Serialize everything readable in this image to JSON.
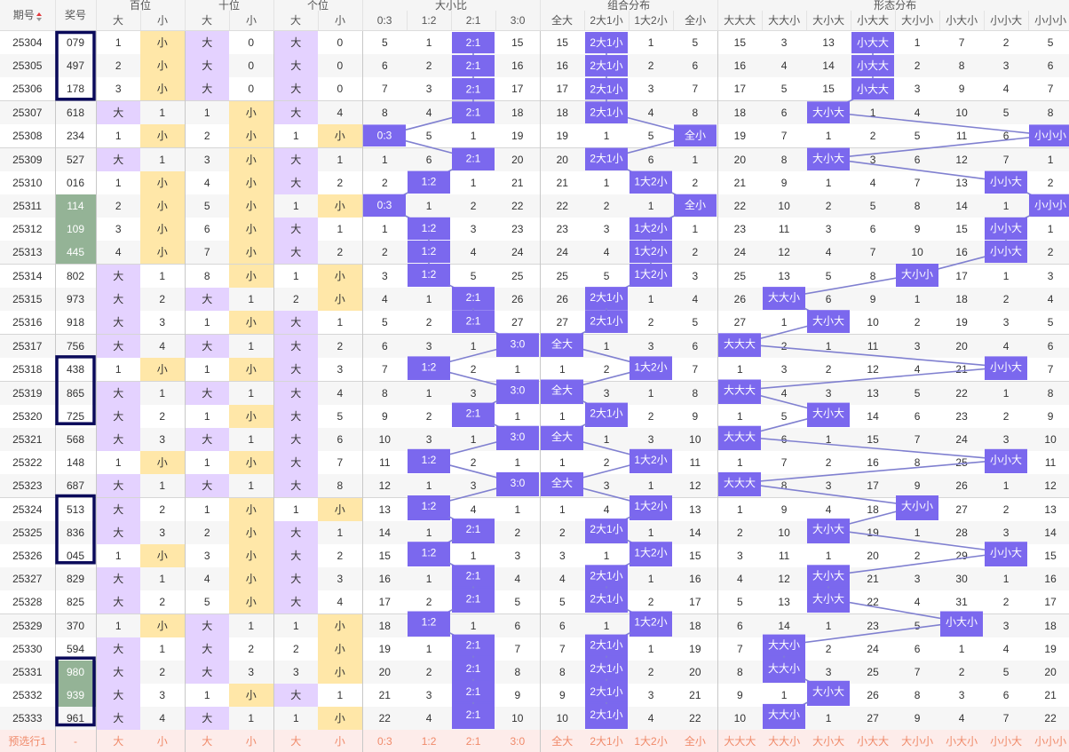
{
  "header": {
    "issue": "期号",
    "prize": "奖号",
    "groups": [
      "百位",
      "十位",
      "个位",
      "大小比",
      "组合分布",
      "形态分布"
    ],
    "big": "大",
    "small": "小",
    "ratio_cols": [
      "0:3",
      "1:2",
      "2:1",
      "3:0"
    ],
    "combo_cols": [
      "全大",
      "2大1小",
      "1大2小",
      "全小"
    ],
    "shape_cols": [
      "大大大",
      "大大小",
      "大小大",
      "小大大",
      "大小小",
      "小大小",
      "小小大",
      "小小小"
    ]
  },
  "preselect": {
    "label": "预选行1",
    "prize": "-"
  },
  "draws": [
    {
      "issue": "25304",
      "num": "079",
      "h": [
        "S",
        1
      ],
      "t": [
        "B",
        0
      ],
      "u": [
        "B",
        0
      ],
      "r": [
        5,
        1,
        0,
        15
      ],
      "c": [
        15,
        0,
        1,
        5
      ],
      "s": [
        15,
        3,
        13,
        0,
        1,
        7,
        2,
        5
      ]
    },
    {
      "issue": "25305",
      "num": "497",
      "h": [
        "S",
        2
      ],
      "t": [
        "B",
        0
      ],
      "u": [
        "B",
        0
      ],
      "r": [
        6,
        2,
        0,
        16
      ],
      "c": [
        16,
        0,
        2,
        6
      ],
      "s": [
        16,
        4,
        14,
        0,
        2,
        8,
        3,
        6
      ]
    },
    {
      "issue": "25306",
      "num": "178",
      "h": [
        "S",
        3
      ],
      "t": [
        "B",
        0
      ],
      "u": [
        "B",
        0
      ],
      "r": [
        7,
        3,
        0,
        17
      ],
      "c": [
        17,
        0,
        3,
        7
      ],
      "s": [
        17,
        5,
        15,
        0,
        3,
        9,
        4,
        7
      ]
    },
    {
      "issue": "25307",
      "num": "618",
      "h": [
        "B",
        1
      ],
      "t": [
        "S",
        1
      ],
      "u": [
        "B",
        4
      ],
      "r": [
        8,
        4,
        0,
        18
      ],
      "c": [
        18,
        0,
        4,
        8
      ],
      "s": [
        18,
        6,
        0,
        1,
        4,
        10,
        5,
        8
      ]
    },
    {
      "issue": "25308",
      "num": "234",
      "h": [
        "S",
        1
      ],
      "t": [
        "S",
        2
      ],
      "u": [
        "S",
        1
      ],
      "r": [
        0,
        5,
        1,
        19
      ],
      "c": [
        19,
        1,
        5,
        0
      ],
      "s": [
        19,
        7,
        1,
        2,
        5,
        11,
        6,
        0
      ]
    },
    {
      "issue": "25309",
      "num": "527",
      "h": [
        "B",
        1
      ],
      "t": [
        "S",
        3
      ],
      "u": [
        "B",
        1
      ],
      "r": [
        1,
        6,
        0,
        20
      ],
      "c": [
        20,
        0,
        6,
        1
      ],
      "s": [
        20,
        8,
        0,
        3,
        6,
        12,
        7,
        1
      ]
    },
    {
      "issue": "25310",
      "num": "016",
      "h": [
        "S",
        1
      ],
      "t": [
        "S",
        4
      ],
      "u": [
        "B",
        2
      ],
      "r": [
        2,
        0,
        1,
        21
      ],
      "c": [
        21,
        1,
        0,
        2
      ],
      "s": [
        21,
        9,
        1,
        4,
        7,
        13,
        0,
        2
      ]
    },
    {
      "issue": "25311",
      "num": "114",
      "h": [
        "S",
        2
      ],
      "t": [
        "S",
        5
      ],
      "u": [
        "S",
        1
      ],
      "r": [
        0,
        1,
        2,
        22
      ],
      "c": [
        22,
        2,
        1,
        0
      ],
      "s": [
        22,
        10,
        2,
        5,
        8,
        14,
        1,
        0
      ]
    },
    {
      "issue": "25312",
      "num": "109",
      "h": [
        "S",
        3
      ],
      "t": [
        "S",
        6
      ],
      "u": [
        "B",
        1
      ],
      "r": [
        1,
        0,
        3,
        23
      ],
      "c": [
        23,
        3,
        0,
        1
      ],
      "s": [
        23,
        11,
        3,
        6,
        9,
        15,
        0,
        1
      ]
    },
    {
      "issue": "25313",
      "num": "445",
      "h": [
        "S",
        4
      ],
      "t": [
        "S",
        7
      ],
      "u": [
        "B",
        2
      ],
      "r": [
        2,
        0,
        4,
        24
      ],
      "c": [
        24,
        4,
        0,
        2
      ],
      "s": [
        24,
        12,
        4,
        7,
        10,
        16,
        0,
        2
      ]
    },
    {
      "issue": "25314",
      "num": "802",
      "h": [
        "B",
        1
      ],
      "t": [
        "S",
        8
      ],
      "u": [
        "S",
        1
      ],
      "r": [
        3,
        0,
        5,
        25
      ],
      "c": [
        25,
        5,
        0,
        3
      ],
      "s": [
        25,
        13,
        5,
        8,
        0,
        17,
        1,
        3
      ]
    },
    {
      "issue": "25315",
      "num": "973",
      "h": [
        "B",
        2
      ],
      "t": [
        "B",
        1
      ],
      "u": [
        "S",
        2
      ],
      "r": [
        4,
        1,
        0,
        26
      ],
      "c": [
        26,
        0,
        1,
        4
      ],
      "s": [
        26,
        0,
        6,
        9,
        1,
        18,
        2,
        4
      ]
    },
    {
      "issue": "25316",
      "num": "918",
      "h": [
        "B",
        3
      ],
      "t": [
        "S",
        1
      ],
      "u": [
        "B",
        1
      ],
      "r": [
        5,
        2,
        0,
        27
      ],
      "c": [
        27,
        0,
        2,
        5
      ],
      "s": [
        27,
        1,
        0,
        10,
        2,
        19,
        3,
        5
      ]
    },
    {
      "issue": "25317",
      "num": "756",
      "h": [
        "B",
        4
      ],
      "t": [
        "B",
        1
      ],
      "u": [
        "B",
        2
      ],
      "r": [
        6,
        3,
        1,
        0
      ],
      "c": [
        0,
        1,
        3,
        6
      ],
      "s": [
        0,
        2,
        1,
        11,
        3,
        20,
        4,
        6
      ]
    },
    {
      "issue": "25318",
      "num": "438",
      "h": [
        "S",
        1
      ],
      "t": [
        "S",
        1
      ],
      "u": [
        "B",
        3
      ],
      "r": [
        7,
        0,
        2,
        1
      ],
      "c": [
        1,
        2,
        0,
        7
      ],
      "s": [
        1,
        3,
        2,
        12,
        4,
        21,
        0,
        7
      ]
    },
    {
      "issue": "25319",
      "num": "865",
      "h": [
        "B",
        1
      ],
      "t": [
        "B",
        1
      ],
      "u": [
        "B",
        4
      ],
      "r": [
        8,
        1,
        3,
        0
      ],
      "c": [
        0,
        3,
        1,
        8
      ],
      "s": [
        0,
        4,
        3,
        13,
        5,
        22,
        1,
        8
      ]
    },
    {
      "issue": "25320",
      "num": "725",
      "h": [
        "B",
        2
      ],
      "t": [
        "S",
        1
      ],
      "u": [
        "B",
        5
      ],
      "r": [
        9,
        2,
        0,
        1
      ],
      "c": [
        1,
        0,
        2,
        9
      ],
      "s": [
        1,
        5,
        0,
        14,
        6,
        23,
        2,
        9
      ]
    },
    {
      "issue": "25321",
      "num": "568",
      "h": [
        "B",
        3
      ],
      "t": [
        "B",
        1
      ],
      "u": [
        "B",
        6
      ],
      "r": [
        10,
        3,
        1,
        0
      ],
      "c": [
        0,
        1,
        3,
        10
      ],
      "s": [
        0,
        6,
        1,
        15,
        7,
        24,
        3,
        10
      ]
    },
    {
      "issue": "25322",
      "num": "148",
      "h": [
        "S",
        1
      ],
      "t": [
        "S",
        1
      ],
      "u": [
        "B",
        7
      ],
      "r": [
        11,
        0,
        2,
        1
      ],
      "c": [
        1,
        2,
        0,
        11
      ],
      "s": [
        1,
        7,
        2,
        16,
        8,
        25,
        0,
        11
      ]
    },
    {
      "issue": "25323",
      "num": "687",
      "h": [
        "B",
        1
      ],
      "t": [
        "B",
        1
      ],
      "u": [
        "B",
        8
      ],
      "r": [
        12,
        1,
        3,
        0
      ],
      "c": [
        0,
        3,
        1,
        12
      ],
      "s": [
        0,
        8,
        3,
        17,
        9,
        26,
        1,
        12
      ]
    },
    {
      "issue": "25324",
      "num": "513",
      "h": [
        "B",
        2
      ],
      "t": [
        "S",
        1
      ],
      "u": [
        "S",
        1
      ],
      "r": [
        13,
        0,
        4,
        1
      ],
      "c": [
        1,
        4,
        0,
        13
      ],
      "s": [
        1,
        9,
        4,
        18,
        0,
        27,
        2,
        13
      ]
    },
    {
      "issue": "25325",
      "num": "836",
      "h": [
        "B",
        3
      ],
      "t": [
        "S",
        2
      ],
      "u": [
        "B",
        1
      ],
      "r": [
        14,
        1,
        0,
        2
      ],
      "c": [
        2,
        0,
        1,
        14
      ],
      "s": [
        2,
        10,
        0,
        19,
        1,
        28,
        3,
        14
      ]
    },
    {
      "issue": "25326",
      "num": "045",
      "h": [
        "S",
        1
      ],
      "t": [
        "S",
        3
      ],
      "u": [
        "B",
        2
      ],
      "r": [
        15,
        0,
        1,
        3
      ],
      "c": [
        3,
        1,
        0,
        15
      ],
      "s": [
        3,
        11,
        1,
        20,
        2,
        29,
        0,
        15
      ]
    },
    {
      "issue": "25327",
      "num": "829",
      "h": [
        "B",
        1
      ],
      "t": [
        "S",
        4
      ],
      "u": [
        "B",
        3
      ],
      "r": [
        16,
        1,
        0,
        4
      ],
      "c": [
        4,
        0,
        1,
        16
      ],
      "s": [
        4,
        12,
        0,
        21,
        3,
        30,
        1,
        16
      ]
    },
    {
      "issue": "25328",
      "num": "825",
      "h": [
        "B",
        2
      ],
      "t": [
        "S",
        5
      ],
      "u": [
        "B",
        4
      ],
      "r": [
        17,
        2,
        0,
        5
      ],
      "c": [
        5,
        0,
        2,
        17
      ],
      "s": [
        5,
        13,
        0,
        22,
        4,
        31,
        2,
        17
      ]
    },
    {
      "issue": "25329",
      "num": "370",
      "h": [
        "S",
        1
      ],
      "t": [
        "B",
        1
      ],
      "u": [
        "S",
        1
      ],
      "r": [
        18,
        0,
        1,
        6
      ],
      "c": [
        6,
        1,
        0,
        18
      ],
      "s": [
        6,
        14,
        1,
        23,
        5,
        0,
        3,
        18
      ]
    },
    {
      "issue": "25330",
      "num": "594",
      "h": [
        "B",
        1
      ],
      "t": [
        "B",
        2
      ],
      "u": [
        "S",
        2
      ],
      "r": [
        19,
        1,
        0,
        7
      ],
      "c": [
        7,
        0,
        1,
        19
      ],
      "s": [
        7,
        0,
        2,
        24,
        6,
        1,
        4,
        19
      ]
    },
    {
      "issue": "25331",
      "num": "980",
      "h": [
        "B",
        2
      ],
      "t": [
        "B",
        3
      ],
      "u": [
        "S",
        3
      ],
      "r": [
        20,
        2,
        0,
        8
      ],
      "c": [
        8,
        0,
        2,
        20
      ],
      "s": [
        8,
        0,
        3,
        25,
        7,
        2,
        5,
        20
      ]
    },
    {
      "issue": "25332",
      "num": "939",
      "h": [
        "B",
        3
      ],
      "t": [
        "S",
        1
      ],
      "u": [
        "B",
        1
      ],
      "r": [
        21,
        3,
        0,
        9
      ],
      "c": [
        9,
        0,
        3,
        21
      ],
      "s": [
        9,
        1,
        0,
        26,
        8,
        3,
        6,
        21
      ]
    },
    {
      "issue": "25333",
      "num": "961",
      "h": [
        "B",
        4
      ],
      "t": [
        "B",
        1
      ],
      "u": [
        "S",
        1
      ],
      "r": [
        22,
        4,
        0,
        10
      ],
      "c": [
        10,
        0,
        4,
        22
      ],
      "s": [
        10,
        0,
        1,
        27,
        9,
        4,
        7,
        22
      ]
    }
  ],
  "highlight_num_rows": {
    "green": [
      7,
      8,
      9,
      27,
      28
    ]
  },
  "boxes": [
    [
      0,
      2
    ],
    [
      14,
      16
    ],
    [
      20,
      22
    ],
    [
      27,
      29
    ]
  ],
  "colors": {
    "big_bg": "#e4d2ff",
    "small_bg": "#ffe7a8",
    "hit": "#7b68ee",
    "line": "#8080d0",
    "box": "#0a0a5a",
    "green": "#94b396"
  }
}
